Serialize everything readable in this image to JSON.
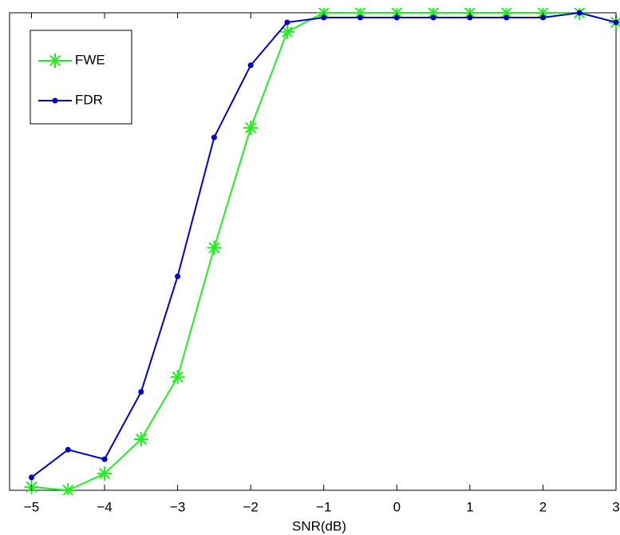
{
  "chart_data": {
    "type": "line",
    "x_label": "SNR(dB)",
    "x": [
      -5,
      -4.5,
      -4,
      -3.5,
      -3,
      -2.5,
      -2,
      -1.5,
      -1,
      -0.5,
      0,
      0.5,
      1,
      1.5,
      2,
      2.5,
      3
    ],
    "series": [
      {
        "name": "FWE",
        "color": "#22ee22",
        "marker": "asterisk",
        "values": [
          0.007,
          0,
          0.035,
          0.107,
          0.237,
          0.508,
          0.759,
          0.96,
          1.0,
          1.0,
          1.0,
          1.0,
          1.0,
          1.0,
          1.0,
          1.0,
          0.98
        ]
      },
      {
        "name": "FDR",
        "color": "#0000cc",
        "marker": "dot",
        "values": [
          0.027,
          0.085,
          0.065,
          0.206,
          0.448,
          0.739,
          0.89,
          0.98,
          0.99,
          0.99,
          0.99,
          0.99,
          0.99,
          0.99,
          0.99,
          1.0,
          0.98
        ]
      }
    ],
    "xlim": [
      -5.3,
      3
    ],
    "xticks": [
      {
        "value": -5,
        "label": "−5"
      },
      {
        "value": -4,
        "label": "−4"
      },
      {
        "value": -3,
        "label": "−3"
      },
      {
        "value": -2,
        "label": "−2"
      },
      {
        "value": -1,
        "label": "−1"
      },
      0,
      1,
      2,
      3
    ],
    "ylim": [
      0,
      1
    ],
    "legend": "upper left"
  }
}
